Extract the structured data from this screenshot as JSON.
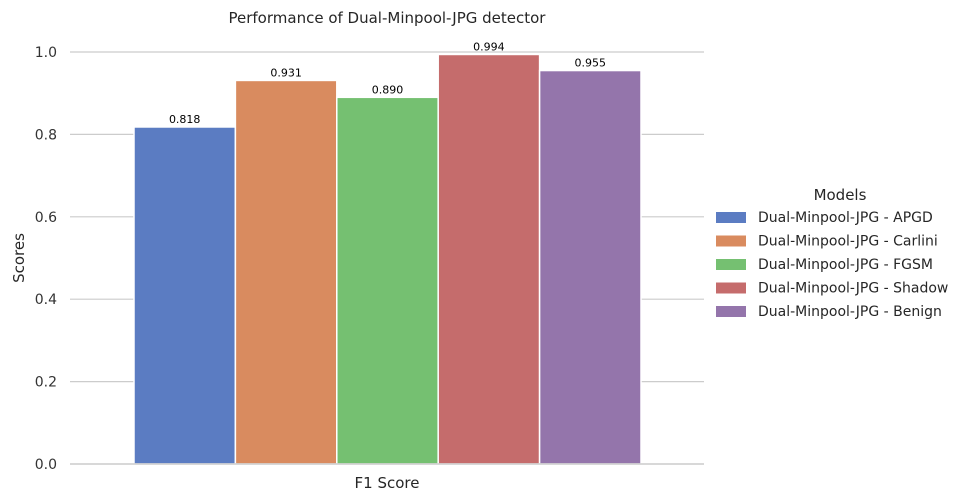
{
  "chart_data": {
    "type": "bar",
    "title": "Performance of Dual-Minpool-JPG detector",
    "xlabel": "F1 Score",
    "ylabel": "Scores",
    "ylim": [
      0,
      1.0
    ],
    "yticks": [
      "0.0",
      "0.2",
      "0.4",
      "0.6",
      "0.8",
      "1.0"
    ],
    "categories": [
      "F1 Score"
    ],
    "grid": "horizontal",
    "legend": {
      "title": "Models",
      "placement": "right"
    },
    "series": [
      {
        "name": "Dual-Minpool-JPG - APGD",
        "values": [
          0.818
        ],
        "label": "0.818",
        "color": "#5b7cc2"
      },
      {
        "name": "Dual-Minpool-JPG - Carlini",
        "values": [
          0.931
        ],
        "label": "0.931",
        "color": "#d98b5f"
      },
      {
        "name": "Dual-Minpool-JPG - FGSM",
        "values": [
          0.89
        ],
        "label": "0.890",
        "color": "#75c071"
      },
      {
        "name": "Dual-Minpool-JPG - Shadow",
        "values": [
          0.994
        ],
        "label": "0.994",
        "color": "#c56c6c"
      },
      {
        "name": "Dual-Minpool-JPG - Benign",
        "values": [
          0.955
        ],
        "label": "0.955",
        "color": "#9475ab"
      }
    ]
  }
}
